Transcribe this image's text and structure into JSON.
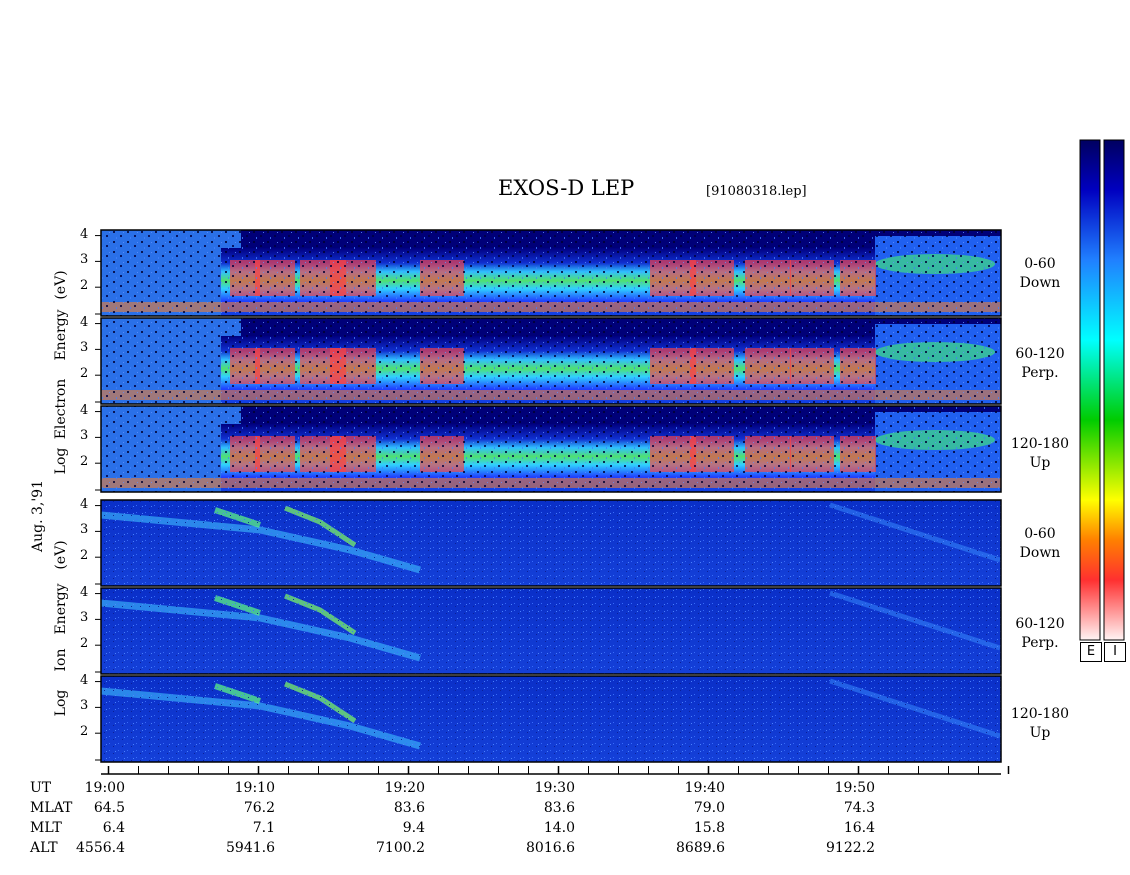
{
  "chart_data": {
    "type": "heatmap",
    "title": "EXOS-D LEP",
    "filename": "[91080318.lep]",
    "date_label": "Aug. 3,'91",
    "groups": [
      {
        "name": "Electron",
        "ylabel_parts": [
          "Log",
          "Electron",
          "Energy",
          "(eV)"
        ],
        "panels": [
          {
            "channel": [
              "0-60",
              "Down"
            ]
          },
          {
            "channel": [
              "60-120",
              "Perp."
            ]
          },
          {
            "channel": [
              "120-180",
              "Up"
            ]
          }
        ]
      },
      {
        "name": "Ion",
        "ylabel_parts": [
          "Log",
          "Ion",
          "Energy",
          "(eV)"
        ],
        "panels": [
          {
            "channel": [
              "0-60",
              "Down"
            ]
          },
          {
            "channel": [
              "60-120",
              "Perp."
            ]
          },
          {
            "channel": [
              "120-180",
              "Up"
            ]
          }
        ]
      }
    ],
    "yticks": [
      "4",
      "3",
      "2"
    ],
    "yticks_bottom": [
      "4",
      "3",
      "2"
    ],
    "xlim_minutes": [
      0,
      60
    ],
    "ephemeris": {
      "row_labels": [
        "UT",
        "MLAT",
        "MLT",
        "ALT"
      ],
      "UT": [
        "19:00",
        "19:10",
        "19:20",
        "19:30",
        "19:40",
        "19:50"
      ],
      "MLAT": [
        "64.5",
        "76.2",
        "83.6",
        "83.6",
        "79.0",
        "74.3"
      ],
      "MLT": [
        "6.4",
        "7.1",
        "9.4",
        "14.0",
        "15.8",
        "16.4"
      ],
      "ALT": [
        "4556.4",
        "5941.6",
        "7100.2",
        "8016.6",
        "8689.6",
        "9122.2"
      ]
    },
    "colorbar": {
      "labels": [
        "E",
        "I"
      ],
      "colors": [
        "#fff0f0",
        "#ff2020",
        "#ff8000",
        "#ffff00",
        "#00cc00",
        "#00ffff",
        "#2080ff",
        "#0000c0",
        "#000060"
      ]
    }
  }
}
